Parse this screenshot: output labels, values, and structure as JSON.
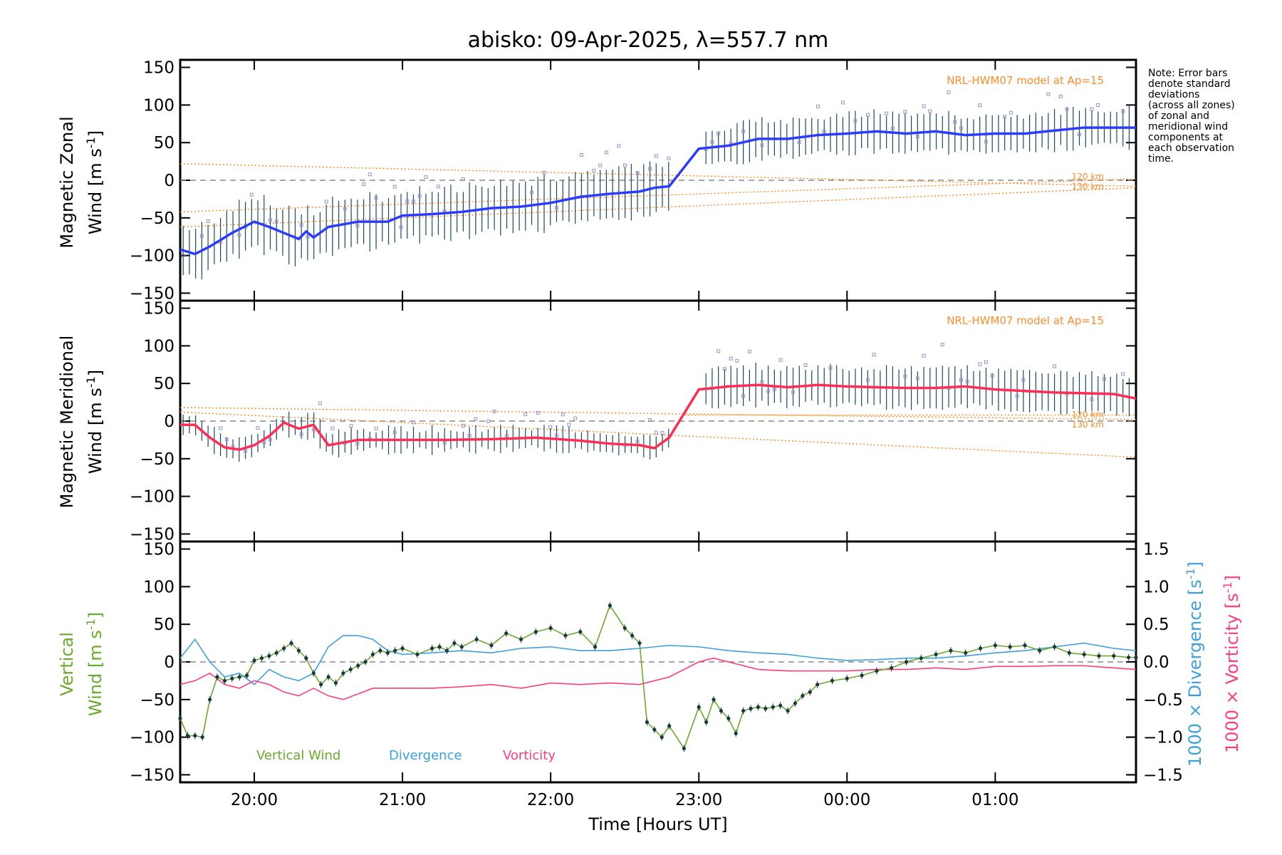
{
  "title": "abisko: 09-Apr-2025, λ=557.7 nm",
  "note_lines": [
    "Note: Error bars",
    "denote standard",
    "deviations",
    "(across all zones)",
    "of zonal and",
    "meridional wind",
    "components at",
    "each observation",
    "time."
  ],
  "xlabel": "Time [Hours UT]",
  "x_ticks": [
    "20:00",
    "21:00",
    "22:00",
    "23:00",
    "00:00",
    "01:00"
  ],
  "y_ticks": [
    "150",
    "100",
    "50",
    "0",
    "−50",
    "−100",
    "−150"
  ],
  "right_ticks": [
    "1.5",
    "1.0",
    "0.5",
    "0.0",
    "−0.5",
    "−1.0",
    "−1.5"
  ],
  "model_label": "NRL-HWM07 model at Ap=15",
  "km120": "120 km",
  "km130": "130 km",
  "panels": {
    "zonal": {
      "ylabel_line1": "Magnetic Zonal",
      "ylabel_line2_prefix": "Wind [m s",
      "ylabel_sup": "-1",
      "ylabel_suffix": "]"
    },
    "meridional": {
      "ylabel_line1": "Magnetic Meridional",
      "ylabel_line2_prefix": "Wind [m s",
      "ylabel_sup": "-1",
      "ylabel_suffix": "]"
    },
    "vertical": {
      "ylabel_line1": "Vertical",
      "ylabel_line2_a": "Wind ",
      "ylabel_line2_b": "[m s",
      "ylabel_sup": "-1",
      "ylabel_suffix": "]",
      "right_label1_prefix": "1000 × Divergence [s",
      "right_label1_sup": "-1",
      "right_label1_suffix": "]",
      "right_label2_prefix": "1000 × Vorticity [s",
      "right_label2_sup": "-1",
      "right_label2_suffix": "]",
      "legend": [
        "Vertical Wind",
        "Divergence",
        "Vorticity"
      ]
    }
  },
  "colors": {
    "zonal": "#2b3bff",
    "meridional": "#ff2d55",
    "vertical": "#6aaa2a",
    "divergence": "#3ca0dc",
    "vorticity": "#ff3c82",
    "model": "#ff8c28",
    "scatter": "#9a8fd4"
  },
  "chart_data": [
    {
      "type": "line",
      "panel": "zonal",
      "x_unit": "hours UT (values past 24 are after midnight)",
      "ylim": [
        -160,
        160
      ],
      "xlim": [
        19.5,
        25.95
      ],
      "series": [
        {
          "x": [
            19.5,
            19.6,
            19.7,
            19.85,
            20.0,
            20.1,
            20.2,
            20.3,
            20.35,
            20.4,
            20.5,
            20.7,
            20.9,
            21.0,
            21.2,
            21.4,
            21.6,
            21.8,
            22.0,
            22.2,
            22.4,
            22.6,
            22.7,
            22.8,
            23.0,
            23.2,
            23.4,
            23.6,
            23.8,
            24.0,
            24.2,
            24.4,
            24.6,
            24.8,
            25.0,
            25.2,
            25.4,
            25.6,
            25.8,
            25.95
          ],
          "y": [
            -92,
            -98,
            -88,
            -70,
            -55,
            -62,
            -70,
            -78,
            -68,
            -76,
            -62,
            -55,
            -55,
            -47,
            -45,
            -42,
            -37,
            -35,
            -30,
            -22,
            -18,
            -15,
            -10,
            -8,
            42,
            46,
            55,
            55,
            60,
            62,
            65,
            62,
            65,
            60,
            62,
            62,
            66,
            70,
            70,
            70
          ]
        }
      ]
    },
    {
      "type": "line",
      "panel": "meridional",
      "x_unit": "hours UT (values past 24 are after midnight)",
      "ylim": [
        -160,
        160
      ],
      "xlim": [
        19.5,
        25.95
      ],
      "series": [
        {
          "x": [
            19.5,
            19.6,
            19.7,
            19.8,
            19.9,
            20.0,
            20.1,
            20.2,
            20.3,
            20.4,
            20.5,
            20.7,
            21.0,
            21.3,
            21.6,
            21.9,
            22.2,
            22.4,
            22.6,
            22.7,
            22.8,
            23.0,
            23.2,
            23.4,
            23.6,
            23.8,
            24.0,
            24.2,
            24.4,
            24.6,
            24.8,
            25.0,
            25.2,
            25.4,
            25.6,
            25.8,
            25.95
          ],
          "y": [
            -5,
            -5,
            -22,
            -35,
            -38,
            -32,
            -20,
            -2,
            -10,
            -5,
            -32,
            -25,
            -25,
            -25,
            -24,
            -22,
            -26,
            -30,
            -32,
            -36,
            -22,
            42,
            46,
            48,
            45,
            48,
            46,
            45,
            44,
            44,
            46,
            42,
            40,
            38,
            37,
            36,
            30
          ]
        }
      ]
    },
    {
      "type": "line",
      "panel": "vertical",
      "x_unit": "hours UT (values past 24 are after midnight)",
      "ylim": [
        -160,
        160
      ],
      "y2lim": [
        -1.6,
        1.6
      ],
      "xlim": [
        19.5,
        25.95
      ],
      "series": [
        {
          "name": "Vertical Wind",
          "axis": "left",
          "x": [
            19.5,
            19.55,
            19.6,
            19.65,
            19.7,
            19.75,
            19.8,
            19.85,
            19.9,
            19.95,
            20.0,
            20.05,
            20.1,
            20.15,
            20.2,
            20.25,
            20.3,
            20.35,
            20.4,
            20.45,
            20.5,
            20.55,
            20.6,
            20.65,
            20.7,
            20.75,
            20.8,
            20.85,
            20.9,
            20.95,
            21.0,
            21.1,
            21.2,
            21.25,
            21.3,
            21.35,
            21.4,
            21.5,
            21.6,
            21.7,
            21.8,
            21.9,
            22.0,
            22.1,
            22.2,
            22.3,
            22.4,
            22.5,
            22.55,
            22.6,
            22.65,
            22.7,
            22.75,
            22.8,
            22.9,
            23.0,
            23.05,
            23.1,
            23.15,
            23.2,
            23.25,
            23.3,
            23.35,
            23.4,
            23.45,
            23.5,
            23.55,
            23.6,
            23.65,
            23.7,
            23.75,
            23.8,
            23.9,
            24.0,
            24.1,
            24.2,
            24.3,
            24.4,
            24.5,
            24.6,
            24.7,
            24.8,
            24.9,
            25.0,
            25.1,
            25.2,
            25.3,
            25.4,
            25.5,
            25.6,
            25.7,
            25.8,
            25.9,
            25.95
          ],
          "y": [
            -75,
            -98,
            -98,
            -100,
            -50,
            -20,
            -25,
            -22,
            -20,
            -18,
            2,
            5,
            8,
            12,
            18,
            25,
            15,
            5,
            -15,
            -30,
            -20,
            -28,
            -15,
            -10,
            -5,
            0,
            10,
            15,
            12,
            15,
            18,
            10,
            18,
            20,
            15,
            25,
            20,
            30,
            22,
            38,
            30,
            40,
            45,
            35,
            40,
            20,
            75,
            45,
            35,
            25,
            -80,
            -90,
            -100,
            -85,
            -115,
            -60,
            -80,
            -50,
            -65,
            -75,
            -95,
            -65,
            -62,
            -60,
            -62,
            -60,
            -58,
            -65,
            -55,
            -45,
            -40,
            -30,
            -25,
            -22,
            -18,
            -12,
            -8,
            0,
            5,
            10,
            15,
            12,
            18,
            22,
            20,
            22,
            15,
            20,
            12,
            10,
            8,
            8,
            6,
            6
          ]
        },
        {
          "name": "Divergence",
          "axis": "right",
          "x": [
            19.5,
            19.6,
            19.7,
            19.8,
            19.9,
            20.0,
            20.1,
            20.2,
            20.3,
            20.4,
            20.5,
            20.6,
            20.7,
            20.8,
            20.9,
            21.0,
            21.2,
            21.4,
            21.6,
            21.8,
            22.0,
            22.2,
            22.4,
            22.6,
            22.8,
            23.0,
            23.2,
            23.4,
            23.6,
            23.8,
            24.0,
            24.2,
            24.4,
            24.6,
            24.8,
            25.0,
            25.2,
            25.4,
            25.6,
            25.8,
            25.95
          ],
          "y": [
            0.05,
            0.3,
            0.0,
            -0.2,
            -0.15,
            -0.3,
            -0.1,
            -0.2,
            -0.25,
            -0.15,
            0.2,
            0.35,
            0.35,
            0.3,
            0.15,
            0.1,
            0.12,
            0.15,
            0.12,
            0.18,
            0.2,
            0.15,
            0.15,
            0.18,
            0.22,
            0.2,
            0.15,
            0.12,
            0.1,
            0.05,
            0.02,
            0.03,
            0.05,
            0.05,
            0.08,
            0.12,
            0.15,
            0.2,
            0.25,
            0.18,
            0.15
          ]
        },
        {
          "name": "Vorticity",
          "axis": "right",
          "x": [
            19.5,
            19.6,
            19.7,
            19.8,
            19.9,
            20.0,
            20.1,
            20.2,
            20.3,
            20.4,
            20.5,
            20.6,
            20.8,
            21.0,
            21.2,
            21.4,
            21.6,
            21.8,
            22.0,
            22.2,
            22.4,
            22.6,
            22.8,
            23.0,
            23.1,
            23.2,
            23.4,
            23.6,
            23.8,
            24.0,
            24.2,
            24.4,
            24.6,
            24.8,
            25.0,
            25.2,
            25.4,
            25.6,
            25.8,
            25.95
          ],
          "y": [
            -0.3,
            -0.25,
            -0.15,
            -0.3,
            -0.35,
            -0.25,
            -0.3,
            -0.4,
            -0.45,
            -0.35,
            -0.45,
            -0.5,
            -0.35,
            -0.35,
            -0.35,
            -0.33,
            -0.3,
            -0.35,
            -0.28,
            -0.3,
            -0.28,
            -0.3,
            -0.2,
            0.0,
            0.05,
            0.0,
            -0.1,
            -0.12,
            -0.12,
            -0.12,
            -0.1,
            -0.1,
            -0.08,
            -0.1,
            -0.06,
            -0.06,
            -0.05,
            -0.05,
            -0.08,
            -0.1
          ]
        }
      ]
    }
  ]
}
